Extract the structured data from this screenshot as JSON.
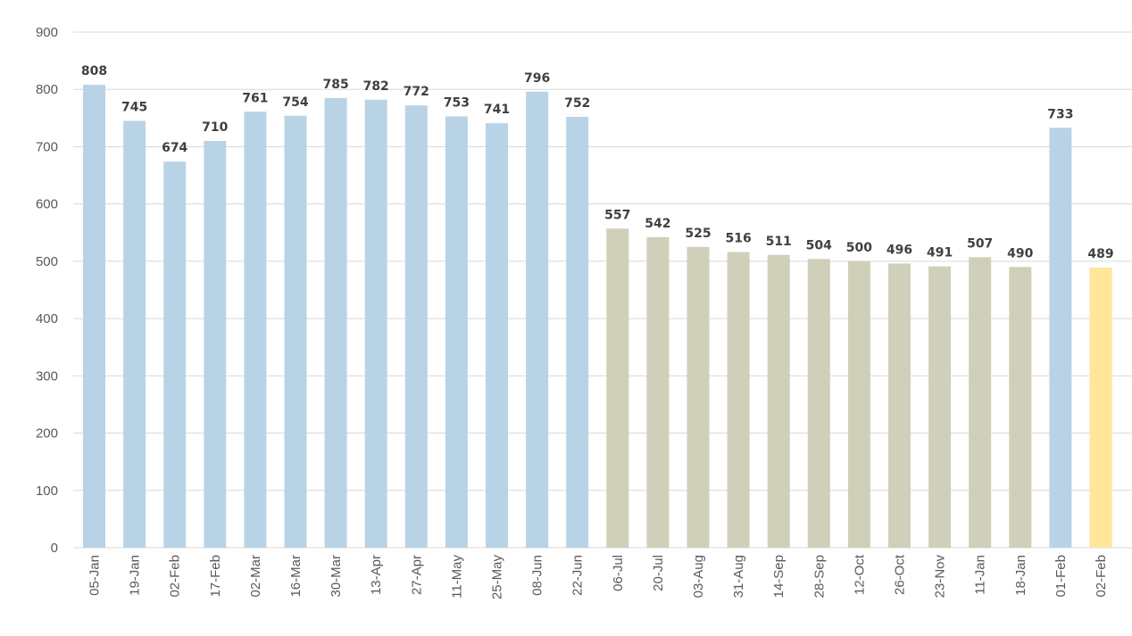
{
  "chart_data": {
    "type": "bar",
    "title": "",
    "xlabel": "",
    "ylabel": "",
    "ylim": [
      0,
      900
    ],
    "yticks": [
      0,
      100,
      200,
      300,
      400,
      500,
      600,
      700,
      800,
      900
    ],
    "grid": true,
    "legend": "none",
    "categories": [
      "05-Jan",
      "19-Jan",
      "02-Feb",
      "17-Feb",
      "02-Mar",
      "16-Mar",
      "30-Mar",
      "13-Apr",
      "27-Apr",
      "11-May",
      "25-May",
      "08-Jun",
      "22-Jun",
      "06-Jul",
      "20-Jul",
      "03-Aug",
      "31-Aug",
      "14-Sep",
      "28-Sep",
      "12-Oct",
      "26-Oct",
      "23-Nov",
      "11-Jan",
      "18-Jan",
      "01-Feb",
      "02-Feb"
    ],
    "values": [
      808,
      745,
      674,
      710,
      761,
      754,
      785,
      782,
      772,
      753,
      741,
      796,
      752,
      557,
      542,
      525,
      516,
      511,
      504,
      500,
      496,
      491,
      507,
      490,
      733,
      489
    ],
    "bar_color_group": [
      "blue",
      "blue",
      "blue",
      "blue",
      "blue",
      "blue",
      "blue",
      "blue",
      "blue",
      "blue",
      "blue",
      "blue",
      "blue",
      "tan",
      "tan",
      "tan",
      "tan",
      "tan",
      "tan",
      "tan",
      "tan",
      "tan",
      "tan",
      "tan",
      "blue",
      "yellow"
    ],
    "colors": {
      "blue": "#b9d3e6",
      "tan": "#d0cfb9",
      "yellow": "#ffe699"
    }
  }
}
